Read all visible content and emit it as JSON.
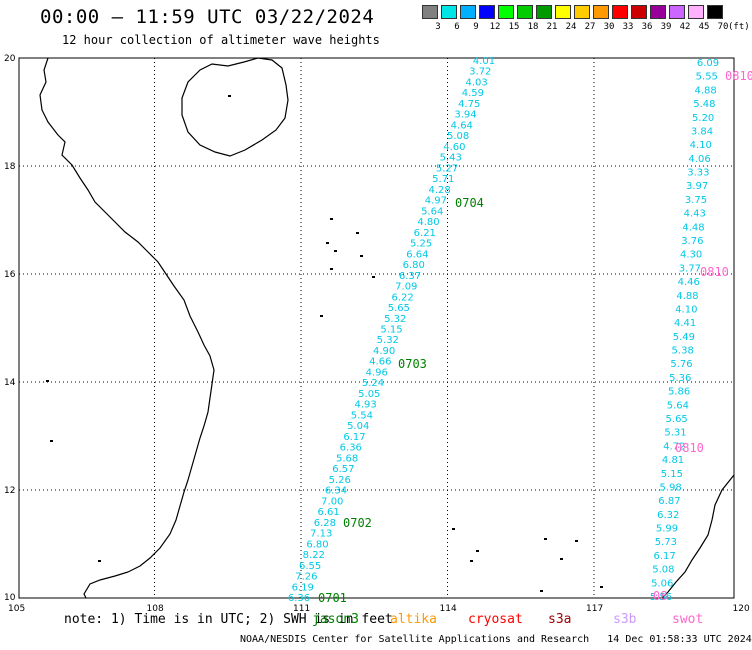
{
  "title": "00:00 – 11:59 UTC 03/22/2024",
  "subtitle": "12 hour collection of altimeter wave heights",
  "legend": {
    "unit": "(ft)",
    "colors": [
      "#808080",
      "#00e5e5",
      "#00b0ff",
      "#0000ff",
      "#00ff00",
      "#00cc00",
      "#009900",
      "#ffff00",
      "#ffcc00",
      "#ff9900",
      "#ff0000",
      "#cc0000",
      "#990099",
      "#cc66ff",
      "#ffb0ff",
      "#000000"
    ],
    "labels": [
      "3",
      "6",
      "9",
      "12",
      "15",
      "18",
      "21",
      "24",
      "27",
      "30",
      "33",
      "36",
      "39",
      "42",
      "45",
      "70"
    ]
  },
  "axes": {
    "x_ticks": [
      "105",
      "108",
      "111",
      "114",
      "117",
      "120"
    ],
    "y_ticks": [
      "20",
      "18",
      "16",
      "14",
      "12",
      "10"
    ]
  },
  "tracks": [
    {
      "satellite_color": "#00c8e6",
      "values": [
        "4.01",
        "3.72",
        "4.03",
        "4.59",
        "4.75",
        "3.94",
        "4.64",
        "5.08",
        "4.60",
        "5.43",
        "5.27",
        "5.71",
        "4.28",
        "4.97",
        "5.64",
        "4.80",
        "6.21",
        "5.25",
        "6.64",
        "6.80",
        "6.37",
        "7.09",
        "6.22",
        "5.65",
        "5.32",
        "5.15",
        "5.32",
        "4.90",
        "4.66",
        "4.96",
        "5.24",
        "5.05",
        "4.93",
        "5.54",
        "5.04",
        "6.17",
        "6.36",
        "5.68",
        "6.57",
        "5.26",
        "6.34",
        "7.00",
        "6.61",
        "6.28",
        "7.13",
        "6.80",
        "8.22",
        "6.55",
        "7.26",
        "6.19",
        "6.36"
      ],
      "time_labels": [
        {
          "text": "0704",
          "color": "#008000"
        },
        {
          "text": "0703",
          "color": "#008000"
        },
        {
          "text": "0702",
          "color": "#008000"
        },
        {
          "text": "0701",
          "color": "#008000"
        }
      ]
    },
    {
      "satellite_color": "#00c8e6",
      "values": [
        "6.09",
        "5.55",
        "4.88",
        "5.48",
        "5.20",
        "3.84",
        "4.10",
        "4.06",
        "3.33",
        "3.97",
        "3.75",
        "4.43",
        "4.48",
        "3.76",
        "4.30",
        "3.77",
        "4.46",
        "4.88",
        "4.10",
        "4.41",
        "5.49",
        "5.38",
        "5.76",
        "5.36",
        "5.86",
        "5.64",
        "5.65",
        "5.31",
        "4.72",
        "4.81",
        "5.15",
        "5.98",
        "6.87",
        "6.32",
        "5.99",
        "5.73",
        "6.17",
        "5.08",
        "5.06",
        "5.56"
      ],
      "time_labels": [
        {
          "text": "0810",
          "color": "#ff66cc"
        },
        {
          "text": "0810",
          "color": "#ff66cc"
        },
        {
          "text": "0810",
          "color": "#ff66cc"
        },
        {
          "text": "08",
          "color": "#ff66cc"
        }
      ]
    }
  ],
  "footer": {
    "note": "note: 1) Time is in UTC; 2) SWH is in feet",
    "satellites": [
      {
        "name": "jason3",
        "color": "#008000"
      },
      {
        "name": "altika",
        "color": "#ff9900"
      },
      {
        "name": "cryosat",
        "color": "#ff0000"
      },
      {
        "name": "s3a",
        "color": "#990000"
      },
      {
        "name": "s3b",
        "color": "#cc99ff"
      },
      {
        "name": "swot",
        "color": "#ff66cc"
      }
    ],
    "credit": "NOAA/NESDIS Center for Satellite Applications and Research",
    "timestamp": "14 Dec 01:58:33 UTC 2024"
  }
}
